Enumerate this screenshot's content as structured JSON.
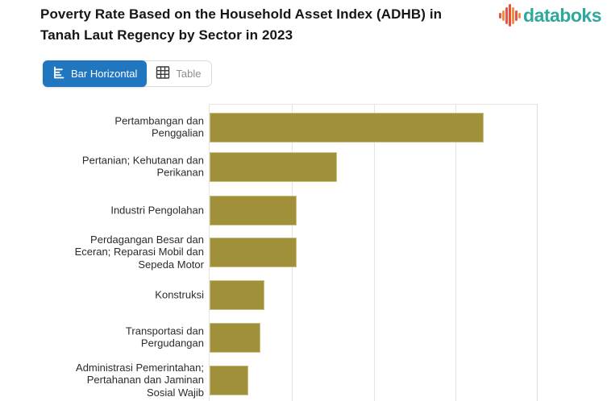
{
  "header": {
    "title_lines": {
      "line1": "Poverty Rate Based on the Household Asset Index (ADHB) in",
      "line2": "Tanah Laut Regency by Sector in 2023"
    },
    "logo": {
      "text": "databoks",
      "wordmark_color": "#2ea99e",
      "icon": "equalizer-bars-icon",
      "icon_bar_heights": [
        7,
        13,
        21,
        28,
        21,
        13,
        7
      ],
      "icon_bar_colors": [
        "#e2574c",
        "#f0903f",
        "#e2574c",
        "#ee4d3b",
        "#f0903f",
        "#e2574c",
        "#f0903f"
      ]
    }
  },
  "toolbar": {
    "bar_horizontal_label": "Bar Horizontal",
    "table_label": "Table",
    "active_view": "Bar Horizontal",
    "active_bg_color": "#2177bf",
    "inactive_text_color": "#8d8d8d"
  },
  "chart_data": {
    "type": "bar",
    "orientation": "horizontal",
    "title": "Poverty Rate Based on the Household Asset Index (ADHB) in Tanah Laut Regency by Sector in 2023",
    "categories": [
      "Pertambangan dan Penggalian",
      "Pertanian; Kehutanan dan Perikanan",
      "Industri Pengolahan",
      "Perdagangan Besar dan Eceran; Reparasi Mobil dan Sepeda Motor",
      "Konstruksi",
      "Transportasi dan Pergudangan",
      "Administrasi Pemerintahan; Pertahanan dan Jaminan Sosial Wajib"
    ],
    "category_label_lines": [
      [
        "Pertambangan dan",
        "Penggalian"
      ],
      [
        "Pertanian; Kehutanan dan",
        "Perikanan"
      ],
      [
        "Industri Pengolahan"
      ],
      [
        "Perdagangan Besar dan",
        "Eceran; Reparasi Mobil dan",
        "Sepeda Motor"
      ],
      [
        "Konstruksi"
      ],
      [
        "Transportasi dan",
        "Pergudangan"
      ],
      [
        "Administrasi Pemerintahan;",
        "Pertahanan dan Jaminan",
        "Sosial Wajib"
      ]
    ],
    "values_pct_of_visible_axis": [
      83.3,
      38.7,
      26.5,
      26.5,
      16.7,
      15.4,
      11.8
    ],
    "values_gridline_units": [
      3.34,
      1.55,
      1.06,
      1.06,
      0.67,
      0.62,
      0.47
    ],
    "x_axis": {
      "tick_labels_visible": false,
      "gridline_positions_pct": [
        0,
        25,
        50,
        75,
        100
      ],
      "gridline_unit_intervals": 4
    },
    "bar_color": "#a0903a",
    "gridline_color": "#e5e5e5",
    "legend": "none",
    "xlabel": "",
    "ylabel": ""
  }
}
